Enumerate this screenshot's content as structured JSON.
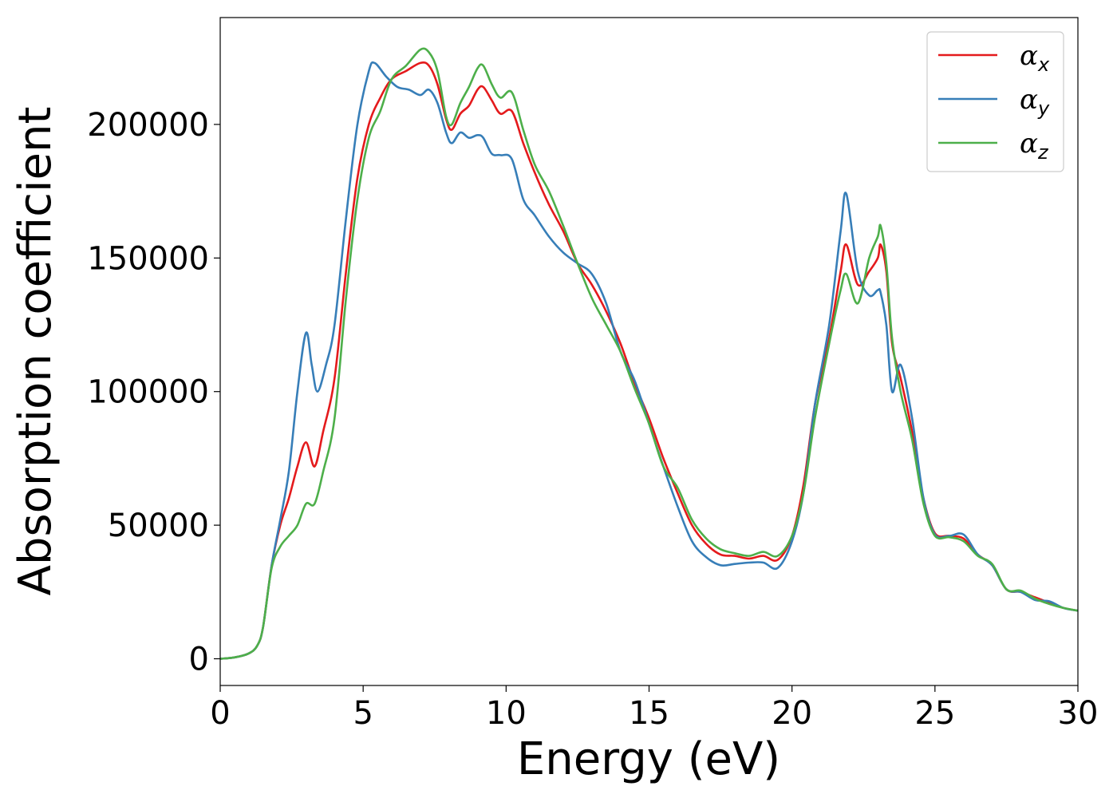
{
  "chart_data": {
    "type": "line",
    "title": "",
    "xlabel": "Energy (eV)",
    "ylabel": "Absorption coefficient",
    "xlim": [
      0,
      30
    ],
    "ylim": [
      -10000,
      240000
    ],
    "x_ticks": [
      0,
      5,
      10,
      15,
      20,
      25,
      30
    ],
    "x_tick_labels": [
      "0",
      "5",
      "10",
      "15",
      "20",
      "25",
      "30"
    ],
    "y_ticks": [
      0,
      50000,
      100000,
      150000,
      200000
    ],
    "y_tick_labels": [
      "0",
      "50000",
      "100000",
      "150000",
      "200000"
    ],
    "grid": false,
    "legend": "top-right",
    "series": [
      {
        "name": "α",
        "subscript": "x",
        "color": "#e41a1c",
        "points": [
          [
            0,
            0
          ],
          [
            0.5,
            500
          ],
          [
            1,
            2000
          ],
          [
            1.3,
            5000
          ],
          [
            1.5,
            12000
          ],
          [
            1.8,
            35000
          ],
          [
            2.1,
            50000
          ],
          [
            2.4,
            60000
          ],
          [
            2.7,
            72000
          ],
          [
            3.0,
            81000
          ],
          [
            3.3,
            72000
          ],
          [
            3.6,
            85000
          ],
          [
            4.0,
            105000
          ],
          [
            4.4,
            145000
          ],
          [
            4.8,
            180000
          ],
          [
            5.2,
            200000
          ],
          [
            5.6,
            210000
          ],
          [
            6.0,
            217000
          ],
          [
            6.5,
            220000
          ],
          [
            7.0,
            223000
          ],
          [
            7.3,
            222000
          ],
          [
            7.6,
            215000
          ],
          [
            7.9,
            202000
          ],
          [
            8.1,
            198000
          ],
          [
            8.4,
            204000
          ],
          [
            8.7,
            207000
          ],
          [
            9.0,
            213000
          ],
          [
            9.2,
            214000
          ],
          [
            9.5,
            209000
          ],
          [
            9.8,
            204000
          ],
          [
            10.2,
            205000
          ],
          [
            10.6,
            193000
          ],
          [
            11.0,
            182000
          ],
          [
            11.5,
            170000
          ],
          [
            12.0,
            160000
          ],
          [
            12.5,
            148000
          ],
          [
            13.0,
            140000
          ],
          [
            13.5,
            130000
          ],
          [
            14.0,
            118000
          ],
          [
            14.5,
            103000
          ],
          [
            15.0,
            90000
          ],
          [
            15.5,
            75000
          ],
          [
            16.0,
            62000
          ],
          [
            16.5,
            50000
          ],
          [
            17.0,
            43000
          ],
          [
            17.5,
            39000
          ],
          [
            18.0,
            38500
          ],
          [
            18.5,
            37500
          ],
          [
            19.0,
            38500
          ],
          [
            19.5,
            37000
          ],
          [
            20.0,
            46000
          ],
          [
            20.4,
            65000
          ],
          [
            20.8,
            95000
          ],
          [
            21.3,
            120000
          ],
          [
            21.7,
            145000
          ],
          [
            21.9,
            155000
          ],
          [
            22.3,
            140000
          ],
          [
            22.7,
            145000
          ],
          [
            23.0,
            150000
          ],
          [
            23.1,
            155000
          ],
          [
            23.3,
            145000
          ],
          [
            23.5,
            118000
          ],
          [
            23.8,
            105000
          ],
          [
            24.2,
            85000
          ],
          [
            24.6,
            60000
          ],
          [
            25.0,
            47000
          ],
          [
            25.5,
            46000
          ],
          [
            26.0,
            45000
          ],
          [
            26.5,
            39000
          ],
          [
            27.0,
            35000
          ],
          [
            27.5,
            26000
          ],
          [
            28.0,
            25000
          ],
          [
            28.5,
            23000
          ],
          [
            29.0,
            21000
          ],
          [
            29.5,
            19000
          ],
          [
            30,
            18000
          ]
        ]
      },
      {
        "name": "α",
        "subscript": "y",
        "color": "#377eb8",
        "points": [
          [
            0,
            0
          ],
          [
            0.5,
            500
          ],
          [
            1,
            2000
          ],
          [
            1.3,
            5000
          ],
          [
            1.5,
            12000
          ],
          [
            1.8,
            35000
          ],
          [
            2.1,
            52000
          ],
          [
            2.4,
            70000
          ],
          [
            2.7,
            100000
          ],
          [
            3.0,
            122000
          ],
          [
            3.2,
            110000
          ],
          [
            3.4,
            100000
          ],
          [
            3.7,
            110000
          ],
          [
            4.0,
            125000
          ],
          [
            4.4,
            165000
          ],
          [
            4.8,
            200000
          ],
          [
            5.2,
            220000
          ],
          [
            5.4,
            223000
          ],
          [
            5.8,
            218000
          ],
          [
            6.2,
            214000
          ],
          [
            6.6,
            213000
          ],
          [
            7.0,
            211000
          ],
          [
            7.3,
            213000
          ],
          [
            7.6,
            208000
          ],
          [
            7.9,
            197000
          ],
          [
            8.1,
            193000
          ],
          [
            8.4,
            197000
          ],
          [
            8.7,
            195000
          ],
          [
            9.0,
            196000
          ],
          [
            9.2,
            195000
          ],
          [
            9.5,
            189000
          ],
          [
            9.8,
            188500
          ],
          [
            10.2,
            187000
          ],
          [
            10.6,
            172000
          ],
          [
            11.0,
            166000
          ],
          [
            11.5,
            158000
          ],
          [
            12.0,
            152000
          ],
          [
            12.5,
            148000
          ],
          [
            13.0,
            144000
          ],
          [
            13.5,
            133000
          ],
          [
            14.0,
            115000
          ],
          [
            14.5,
            104000
          ],
          [
            15.0,
            88000
          ],
          [
            15.5,
            72000
          ],
          [
            16.0,
            57000
          ],
          [
            16.5,
            44000
          ],
          [
            17.0,
            38000
          ],
          [
            17.5,
            35000
          ],
          [
            18.0,
            35500
          ],
          [
            18.5,
            36000
          ],
          [
            19.0,
            36000
          ],
          [
            19.5,
            34000
          ],
          [
            20.0,
            44000
          ],
          [
            20.4,
            62000
          ],
          [
            20.8,
            95000
          ],
          [
            21.3,
            125000
          ],
          [
            21.7,
            160000
          ],
          [
            21.9,
            174000
          ],
          [
            22.3,
            145000
          ],
          [
            22.7,
            136000
          ],
          [
            23.0,
            138000
          ],
          [
            23.1,
            137000
          ],
          [
            23.3,
            125000
          ],
          [
            23.5,
            100000
          ],
          [
            23.8,
            110000
          ],
          [
            24.2,
            90000
          ],
          [
            24.6,
            60000
          ],
          [
            25.0,
            46500
          ],
          [
            25.5,
            46000
          ],
          [
            26.0,
            46500
          ],
          [
            26.5,
            39000
          ],
          [
            27.0,
            35000
          ],
          [
            27.5,
            26000
          ],
          [
            28.0,
            25000
          ],
          [
            28.5,
            22000
          ],
          [
            29.0,
            21500
          ],
          [
            29.5,
            19000
          ],
          [
            30,
            18000
          ]
        ]
      },
      {
        "name": "α",
        "subscript": "z",
        "color": "#4daf4a",
        "points": [
          [
            0,
            0
          ],
          [
            0.5,
            500
          ],
          [
            1,
            2000
          ],
          [
            1.3,
            5000
          ],
          [
            1.5,
            12000
          ],
          [
            1.8,
            34000
          ],
          [
            2.1,
            42000
          ],
          [
            2.4,
            46000
          ],
          [
            2.7,
            50000
          ],
          [
            3.0,
            58000
          ],
          [
            3.3,
            58000
          ],
          [
            3.6,
            70000
          ],
          [
            4.0,
            90000
          ],
          [
            4.4,
            135000
          ],
          [
            4.8,
            172000
          ],
          [
            5.2,
            195000
          ],
          [
            5.6,
            205000
          ],
          [
            6.0,
            217000
          ],
          [
            6.5,
            222000
          ],
          [
            7.0,
            228000
          ],
          [
            7.3,
            227000
          ],
          [
            7.6,
            220000
          ],
          [
            7.9,
            203000
          ],
          [
            8.1,
            200000
          ],
          [
            8.4,
            208000
          ],
          [
            8.7,
            214000
          ],
          [
            9.0,
            221000
          ],
          [
            9.2,
            222000
          ],
          [
            9.5,
            215000
          ],
          [
            9.8,
            210000
          ],
          [
            10.2,
            212000
          ],
          [
            10.6,
            198000
          ],
          [
            11.0,
            185000
          ],
          [
            11.5,
            175000
          ],
          [
            12.0,
            162000
          ],
          [
            12.5,
            148000
          ],
          [
            13.0,
            135000
          ],
          [
            13.5,
            125000
          ],
          [
            14.0,
            115000
          ],
          [
            14.5,
            101000
          ],
          [
            15.0,
            88000
          ],
          [
            15.5,
            72000
          ],
          [
            16.0,
            64000
          ],
          [
            16.5,
            52000
          ],
          [
            17.0,
            45000
          ],
          [
            17.5,
            41000
          ],
          [
            18.0,
            39500
          ],
          [
            18.5,
            38500
          ],
          [
            19.0,
            40000
          ],
          [
            19.5,
            38500
          ],
          [
            20.0,
            46000
          ],
          [
            20.4,
            62000
          ],
          [
            20.8,
            90000
          ],
          [
            21.3,
            118000
          ],
          [
            21.7,
            138000
          ],
          [
            21.9,
            144000
          ],
          [
            22.3,
            133000
          ],
          [
            22.7,
            150000
          ],
          [
            23.0,
            158000
          ],
          [
            23.1,
            162000
          ],
          [
            23.3,
            148000
          ],
          [
            23.5,
            120000
          ],
          [
            23.8,
            100000
          ],
          [
            24.2,
            82000
          ],
          [
            24.6,
            58000
          ],
          [
            25.0,
            46000
          ],
          [
            25.5,
            45500
          ],
          [
            26.0,
            44000
          ],
          [
            26.5,
            38500
          ],
          [
            27.0,
            35500
          ],
          [
            27.5,
            26000
          ],
          [
            28.0,
            25500
          ],
          [
            28.5,
            22500
          ],
          [
            29.0,
            20500
          ],
          [
            29.5,
            19000
          ],
          [
            30,
            18000
          ]
        ]
      }
    ]
  }
}
